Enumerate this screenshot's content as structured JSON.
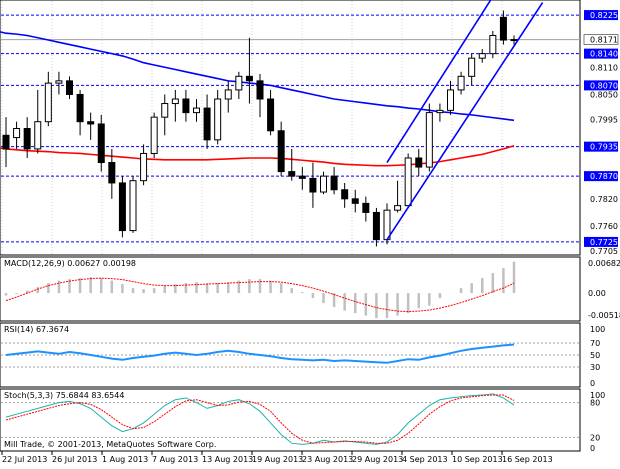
{
  "colors": {
    "bull_candle": "#ffffff",
    "bear_candle": "#000000",
    "ma_fast": "#0000ff",
    "ma_slow": "#ff0000",
    "channel": "#0000ff",
    "level_line": "#0000ff",
    "macd_hist": "#c0c0c0",
    "macd_signal": "#ff0000",
    "rsi_line": "#1e90ff",
    "stoch_main": "#20b2aa",
    "stoch_signal": "#ff0000",
    "label_highlight": "#0000ff"
  },
  "main": {
    "price_labels": [
      "0.8225",
      "0.8171",
      "0.8140",
      "0.8110",
      "0.8070",
      "0.8050",
      "0.7995",
      "0.7935",
      "0.7870",
      "0.7820",
      "0.7760",
      "0.7725",
      "0.7705"
    ],
    "highlighted_levels": [
      "0.8225",
      "0.8140",
      "0.8070",
      "0.7935",
      "0.7870",
      "0.7725"
    ],
    "current_price": "0.8171"
  },
  "macd": {
    "title": "MACD(12,26,9) 0.00627 0.00198",
    "axis": [
      "0.00682",
      "0.00",
      "-0.00518"
    ]
  },
  "rsi": {
    "title": "RSI(14) 67.3674",
    "axis": [
      "100",
      "70",
      "50",
      "30",
      "0"
    ]
  },
  "stoch": {
    "title": "Stoch(5,3,3) 75.6844 83.6544",
    "axis": [
      "100",
      "80",
      "20",
      "0"
    ]
  },
  "footer": {
    "copyright": "Mill Trade, © 2001-2013, MetaQuotes Software Corp.",
    "dates": [
      "22 Jul 2013",
      "26 Jul 2013",
      "1 Aug 2013",
      "7 Aug 2013",
      "13 Aug 2013",
      "19 Aug 2013",
      "23 Aug 2013",
      "29 Aug 2013",
      "4 Sep 2013",
      "10 Sep 2013",
      "16 Sep 2013"
    ]
  },
  "chart_data": {
    "type": "candlestick",
    "instrument_timeframe": "Daily",
    "candles": [
      {
        "o": 0.796,
        "h": 0.8,
        "l": 0.789,
        "c": 0.793
      },
      {
        "o": 0.7955,
        "h": 0.799,
        "l": 0.793,
        "c": 0.7975
      },
      {
        "o": 0.7975,
        "h": 0.8,
        "l": 0.791,
        "c": 0.793
      },
      {
        "o": 0.793,
        "h": 0.806,
        "l": 0.792,
        "c": 0.799
      },
      {
        "o": 0.799,
        "h": 0.81,
        "l": 0.798,
        "c": 0.8075
      },
      {
        "o": 0.8075,
        "h": 0.81,
        "l": 0.805,
        "c": 0.808
      },
      {
        "o": 0.808,
        "h": 0.809,
        "l": 0.804,
        "c": 0.805
      },
      {
        "o": 0.805,
        "h": 0.806,
        "l": 0.796,
        "c": 0.799
      },
      {
        "o": 0.799,
        "h": 0.801,
        "l": 0.795,
        "c": 0.7985
      },
      {
        "o": 0.7985,
        "h": 0.8005,
        "l": 0.788,
        "c": 0.79
      },
      {
        "o": 0.79,
        "h": 0.793,
        "l": 0.782,
        "c": 0.7855
      },
      {
        "o": 0.7855,
        "h": 0.787,
        "l": 0.7735,
        "c": 0.775
      },
      {
        "o": 0.775,
        "h": 0.787,
        "l": 0.7745,
        "c": 0.786
      },
      {
        "o": 0.786,
        "h": 0.794,
        "l": 0.785,
        "c": 0.792
      },
      {
        "o": 0.792,
        "h": 0.801,
        "l": 0.791,
        "c": 0.8
      },
      {
        "o": 0.8,
        "h": 0.805,
        "l": 0.796,
        "c": 0.803
      },
      {
        "o": 0.803,
        "h": 0.806,
        "l": 0.799,
        "c": 0.804
      },
      {
        "o": 0.804,
        "h": 0.806,
        "l": 0.799,
        "c": 0.801
      },
      {
        "o": 0.801,
        "h": 0.804,
        "l": 0.799,
        "c": 0.802
      },
      {
        "o": 0.802,
        "h": 0.805,
        "l": 0.793,
        "c": 0.795
      },
      {
        "o": 0.795,
        "h": 0.806,
        "l": 0.794,
        "c": 0.804
      },
      {
        "o": 0.804,
        "h": 0.808,
        "l": 0.801,
        "c": 0.806
      },
      {
        "o": 0.806,
        "h": 0.81,
        "l": 0.804,
        "c": 0.809
      },
      {
        "o": 0.809,
        "h": 0.8175,
        "l": 0.803,
        "c": 0.808
      },
      {
        "o": 0.808,
        "h": 0.8095,
        "l": 0.8,
        "c": 0.804
      },
      {
        "o": 0.804,
        "h": 0.806,
        "l": 0.796,
        "c": 0.797
      },
      {
        "o": 0.797,
        "h": 0.799,
        "l": 0.787,
        "c": 0.788
      },
      {
        "o": 0.788,
        "h": 0.793,
        "l": 0.786,
        "c": 0.787
      },
      {
        "o": 0.787,
        "h": 0.789,
        "l": 0.784,
        "c": 0.7865
      },
      {
        "o": 0.7865,
        "h": 0.79,
        "l": 0.78,
        "c": 0.7835
      },
      {
        "o": 0.7835,
        "h": 0.788,
        "l": 0.783,
        "c": 0.787
      },
      {
        "o": 0.787,
        "h": 0.789,
        "l": 0.783,
        "c": 0.784
      },
      {
        "o": 0.784,
        "h": 0.7855,
        "l": 0.78,
        "c": 0.782
      },
      {
        "o": 0.782,
        "h": 0.784,
        "l": 0.779,
        "c": 0.781
      },
      {
        "o": 0.781,
        "h": 0.7825,
        "l": 0.777,
        "c": 0.779
      },
      {
        "o": 0.779,
        "h": 0.78,
        "l": 0.7715,
        "c": 0.773
      },
      {
        "o": 0.773,
        "h": 0.781,
        "l": 0.772,
        "c": 0.7795
      },
      {
        "o": 0.7795,
        "h": 0.786,
        "l": 0.779,
        "c": 0.7805
      },
      {
        "o": 0.7805,
        "h": 0.792,
        "l": 0.78,
        "c": 0.791
      },
      {
        "o": 0.791,
        "h": 0.793,
        "l": 0.787,
        "c": 0.789
      },
      {
        "o": 0.789,
        "h": 0.803,
        "l": 0.788,
        "c": 0.801
      },
      {
        "o": 0.801,
        "h": 0.803,
        "l": 0.799,
        "c": 0.8015
      },
      {
        "o": 0.8015,
        "h": 0.808,
        "l": 0.8005,
        "c": 0.806
      },
      {
        "o": 0.806,
        "h": 0.81,
        "l": 0.805,
        "c": 0.809
      },
      {
        "o": 0.809,
        "h": 0.814,
        "l": 0.807,
        "c": 0.813
      },
      {
        "o": 0.813,
        "h": 0.815,
        "l": 0.812,
        "c": 0.814
      },
      {
        "o": 0.814,
        "h": 0.819,
        "l": 0.813,
        "c": 0.818
      },
      {
        "o": 0.822,
        "h": 0.8235,
        "l": 0.816,
        "c": 0.817
      },
      {
        "o": 0.817,
        "h": 0.818,
        "l": 0.816,
        "c": 0.8171
      }
    ],
    "ma_fast": [
      0.8185,
      0.8183,
      0.818,
      0.8175,
      0.817,
      0.8165,
      0.816,
      0.8155,
      0.815,
      0.8145,
      0.814,
      0.8135,
      0.8128,
      0.812,
      0.8115,
      0.811,
      0.8105,
      0.81,
      0.8095,
      0.809,
      0.8085,
      0.808,
      0.8078,
      0.8075,
      0.8073,
      0.807,
      0.8065,
      0.806,
      0.8055,
      0.805,
      0.8045,
      0.804,
      0.8037,
      0.8034,
      0.8031,
      0.8028,
      0.8025,
      0.8023,
      0.802,
      0.8018,
      0.8015,
      0.8012,
      0.801,
      0.8007,
      0.8005,
      0.8002,
      0.7999,
      0.7996,
      0.7993
    ],
    "ma_slow": [
      0.793,
      0.7928,
      0.7926,
      0.7925,
      0.7924,
      0.7922,
      0.7921,
      0.792,
      0.7918,
      0.7916,
      0.7914,
      0.7912,
      0.791,
      0.7908,
      0.7907,
      0.7906,
      0.7906,
      0.7906,
      0.7906,
      0.7906,
      0.7907,
      0.7908,
      0.7909,
      0.791,
      0.791,
      0.791,
      0.7909,
      0.7907,
      0.7905,
      0.7903,
      0.7901,
      0.7898,
      0.7896,
      0.7895,
      0.7894,
      0.7893,
      0.7893,
      0.7894,
      0.7895,
      0.7897,
      0.7899,
      0.7902,
      0.7906,
      0.791,
      0.7914,
      0.7918,
      0.7924,
      0.793,
      0.7937
    ],
    "channel": {
      "lower": [
        {
          "i": 36,
          "p": 0.773
        },
        {
          "i": 49,
          "p": 0.8235
        }
      ],
      "upper": [
        {
          "i": 36,
          "p": 0.79
        },
        {
          "i": 49,
          "p": 0.842
        }
      ]
    },
    "levels": [
      0.8225,
      0.814,
      0.807,
      0.7935,
      0.787,
      0.7725
    ],
    "ylim": [
      0.7705,
      0.8245
    ],
    "macd_hist": [
      -0.0005,
      -0.0002,
      0.0005,
      0.0012,
      0.002,
      0.0025,
      0.0028,
      0.003,
      0.0032,
      0.003,
      0.0025,
      0.0018,
      0.001,
      0.0008,
      0.001,
      0.0015,
      0.0018,
      0.002,
      0.0022,
      0.002,
      0.002,
      0.0022,
      0.0025,
      0.0028,
      0.0028,
      0.0025,
      0.002,
      0.001,
      0.0002,
      -0.001,
      -0.002,
      -0.0028,
      -0.0035,
      -0.004,
      -0.0045,
      -0.005,
      -0.005,
      -0.0045,
      -0.004,
      -0.003,
      -0.0025,
      -0.001,
      0.0,
      0.001,
      0.002,
      0.003,
      0.004,
      0.005,
      0.0063
    ],
    "macd_signal": [
      -0.0015,
      -0.0008,
      0.0,
      0.0008,
      0.0015,
      0.002,
      0.0024,
      0.0027,
      0.0029,
      0.003,
      0.0029,
      0.0027,
      0.0023,
      0.0019,
      0.0016,
      0.0015,
      0.0015,
      0.0016,
      0.0017,
      0.0018,
      0.0019,
      0.002,
      0.0021,
      0.0022,
      0.0023,
      0.0023,
      0.0022,
      0.0019,
      0.0015,
      0.001,
      0.0004,
      -0.0003,
      -0.001,
      -0.0017,
      -0.0023,
      -0.0029,
      -0.0033,
      -0.0036,
      -0.0037,
      -0.0036,
      -0.0034,
      -0.003,
      -0.0025,
      -0.0019,
      -0.0012,
      -0.0005,
      0.0003,
      0.001,
      0.002
    ],
    "macd_ylim": [
      -0.00518,
      0.00682
    ],
    "rsi": [
      50,
      52,
      54,
      56,
      54,
      52,
      55,
      53,
      50,
      47,
      44,
      42,
      45,
      47,
      49,
      52,
      54,
      52,
      50,
      52,
      55,
      57,
      55,
      52,
      50,
      48,
      45,
      43,
      42,
      41,
      42,
      40,
      41,
      40,
      39,
      38,
      37,
      40,
      43,
      42,
      46,
      49,
      53,
      57,
      60,
      62,
      64,
      66,
      67.4
    ],
    "stoch_k": [
      55,
      60,
      65,
      70,
      75,
      80,
      82,
      78,
      70,
      55,
      40,
      30,
      35,
      45,
      60,
      75,
      85,
      88,
      80,
      70,
      75,
      82,
      85,
      78,
      65,
      45,
      25,
      10,
      8,
      10,
      15,
      12,
      14,
      12,
      10,
      8,
      12,
      25,
      45,
      60,
      75,
      85,
      88,
      90,
      92,
      93,
      95,
      88,
      75.7
    ],
    "stoch_d": [
      50,
      55,
      60,
      65,
      70,
      75,
      78,
      80,
      77,
      68,
      55,
      42,
      35,
      37,
      47,
      60,
      73,
      83,
      85,
      80,
      75,
      76,
      81,
      82,
      77,
      65,
      45,
      27,
      15,
      10,
      11,
      12,
      13,
      13,
      12,
      10,
      10,
      15,
      27,
      43,
      60,
      73,
      83,
      88,
      90,
      92,
      93,
      93,
      83.7
    ]
  }
}
